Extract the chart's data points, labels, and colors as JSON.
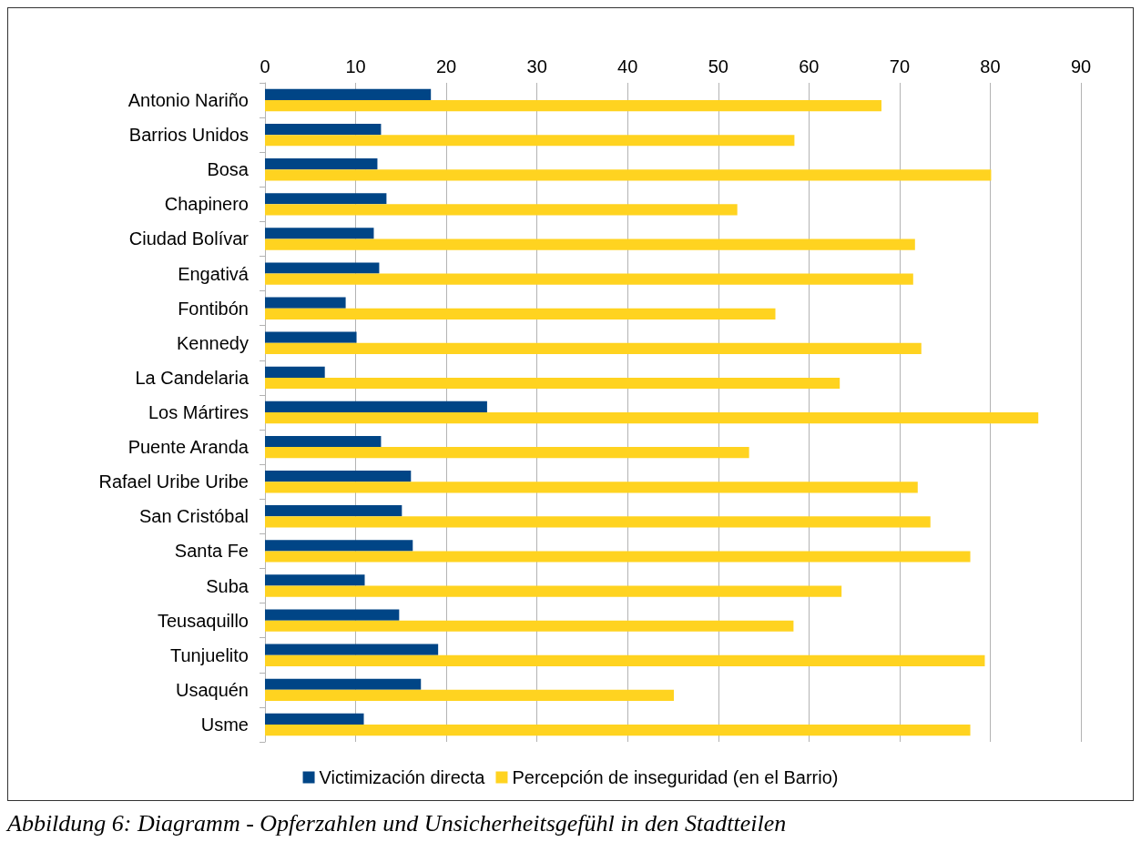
{
  "chart_data": {
    "type": "bar",
    "orientation": "horizontal",
    "categories": [
      "Antonio Nariño",
      "Barrios Unidos",
      "Bosa",
      "Chapinero",
      "Ciudad Bolívar",
      "Engativá",
      "Fontibón",
      "Kennedy",
      "La Candelaria",
      "Los Mártires",
      "Puente Aranda",
      "Rafael Uribe Uribe",
      "San Cristóbal",
      "Santa Fe",
      "Suba",
      "Teusaquillo",
      "Tunjuelito",
      "Usaquén",
      "Usme"
    ],
    "series": [
      {
        "name": "Victimización directa",
        "color": "#004586",
        "values": [
          18.3,
          12.8,
          12.4,
          13.4,
          12.0,
          12.6,
          8.9,
          10.1,
          6.6,
          24.5,
          12.8,
          16.1,
          15.1,
          16.3,
          11.0,
          14.8,
          19.1,
          17.2,
          10.9
        ]
      },
      {
        "name": "Percepción de inseguridad (en el Barrio)",
        "color": "#ffd320",
        "values": [
          68.0,
          58.4,
          80.1,
          52.1,
          71.7,
          71.5,
          56.3,
          72.4,
          63.4,
          85.3,
          53.4,
          72.0,
          73.4,
          77.8,
          63.6,
          58.3,
          79.4,
          45.1,
          77.8
        ]
      }
    ],
    "xlim": [
      0,
      90
    ],
    "xticks": [
      0,
      10,
      20,
      30,
      40,
      50,
      60,
      70,
      80,
      90
    ],
    "grid": "x",
    "legend": "bottom",
    "annotations": [
      "Abbildung 6: Diagramm - Opferzahlen und Unsicherheitsgefühl in den Stadtteilen"
    ]
  }
}
